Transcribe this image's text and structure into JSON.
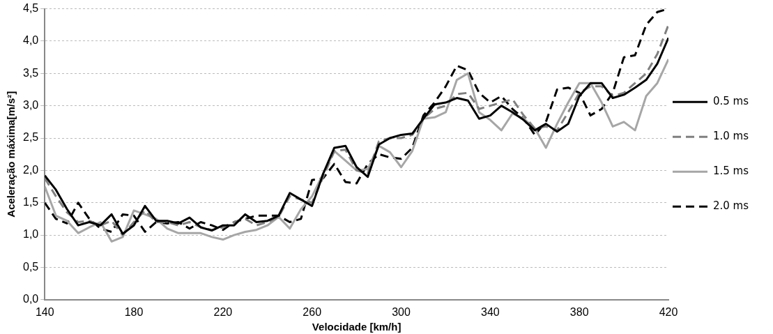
{
  "chart_data": {
    "type": "line",
    "xlabel": "Velocidade [km/h]",
    "ylabel": "Aceleração máxima[m/s²]",
    "x": [
      140,
      145,
      150,
      155,
      160,
      165,
      170,
      175,
      180,
      185,
      190,
      195,
      200,
      205,
      210,
      215,
      220,
      225,
      230,
      235,
      240,
      245,
      250,
      255,
      260,
      265,
      270,
      275,
      280,
      285,
      290,
      295,
      300,
      305,
      310,
      315,
      320,
      325,
      330,
      335,
      340,
      345,
      350,
      355,
      360,
      365,
      370,
      375,
      380,
      385,
      390,
      395,
      400,
      405,
      410,
      415,
      420
    ],
    "xlim": [
      140,
      420
    ],
    "xticks": [
      140,
      180,
      220,
      260,
      300,
      340,
      380,
      420
    ],
    "ylim": [
      0,
      4.5
    ],
    "yticks": [
      {
        "value": 0,
        "label": "0,0"
      },
      {
        "value": 0.5,
        "label": "0,5"
      },
      {
        "value": 1,
        "label": "1,0"
      },
      {
        "value": 1.5,
        "label": "1,5"
      },
      {
        "value": 2,
        "label": "2,0"
      },
      {
        "value": 2.5,
        "label": "2,5"
      },
      {
        "value": 3,
        "label": "3,0"
      },
      {
        "value": 3.5,
        "label": "3,5"
      },
      {
        "value": 4,
        "label": "4,0"
      },
      {
        "value": 4.5,
        "label": "4,5"
      }
    ],
    "grid": "y",
    "legend": "right",
    "marker": "none",
    "series": [
      {
        "name": "0.5 ms",
        "color": "#000000",
        "line_style": "solid",
        "values": [
          1.92,
          1.7,
          1.4,
          1.15,
          1.2,
          1.15,
          1.32,
          1.02,
          1.15,
          1.45,
          1.22,
          1.22,
          1.18,
          1.27,
          1.12,
          1.07,
          1.15,
          1.15,
          1.32,
          1.2,
          1.22,
          1.3,
          1.65,
          1.55,
          1.45,
          1.95,
          2.35,
          2.38,
          2.05,
          1.9,
          2.4,
          2.5,
          2.55,
          2.57,
          2.8,
          3.02,
          3.05,
          3.12,
          3.08,
          2.8,
          2.85,
          3.0,
          2.9,
          2.78,
          2.62,
          2.72,
          2.6,
          2.72,
          3.15,
          3.35,
          3.35,
          3.12,
          3.17,
          3.28,
          3.4,
          3.65,
          4.05
        ]
      },
      {
        "name": "1.0 ms",
        "color": "#808080",
        "line_style": "dashed",
        "values": [
          1.88,
          1.6,
          1.35,
          1.2,
          1.22,
          1.15,
          1.22,
          1.0,
          1.2,
          1.38,
          1.2,
          1.2,
          1.15,
          1.2,
          1.12,
          1.08,
          1.12,
          1.2,
          1.25,
          1.15,
          1.2,
          1.28,
          1.6,
          1.55,
          1.5,
          1.9,
          2.3,
          2.32,
          2.0,
          1.95,
          2.45,
          2.5,
          2.5,
          2.55,
          2.8,
          2.95,
          3.0,
          3.18,
          3.2,
          2.95,
          3.0,
          3.05,
          3.1,
          2.85,
          2.65,
          2.68,
          2.62,
          2.9,
          3.2,
          3.3,
          3.3,
          3.15,
          3.2,
          3.35,
          3.5,
          3.8,
          4.25
        ]
      },
      {
        "name": "1.5 ms",
        "color": "#a6a6a6",
        "line_style": "solid",
        "values": [
          1.75,
          1.3,
          1.22,
          1.03,
          1.12,
          1.2,
          0.9,
          0.97,
          1.38,
          1.32,
          1.25,
          1.1,
          1.03,
          1.03,
          1.03,
          0.97,
          0.93,
          1.0,
          1.05,
          1.08,
          1.15,
          1.28,
          1.1,
          1.4,
          1.6,
          1.95,
          2.3,
          2.15,
          2.0,
          2.02,
          2.38,
          2.28,
          2.05,
          2.3,
          2.8,
          2.82,
          2.9,
          3.4,
          3.5,
          2.9,
          2.78,
          2.62,
          2.88,
          2.8,
          2.65,
          2.35,
          2.72,
          3.05,
          3.35,
          3.35,
          3.05,
          2.68,
          2.75,
          2.62,
          3.15,
          3.35,
          3.72
        ]
      },
      {
        "name": "2.0 ms",
        "color": "#000000",
        "line_style": "dashed",
        "values": [
          1.5,
          1.25,
          1.18,
          1.5,
          1.25,
          1.1,
          1.05,
          1.32,
          1.3,
          1.05,
          1.2,
          1.18,
          1.2,
          1.1,
          1.2,
          1.15,
          1.08,
          1.2,
          1.25,
          1.3,
          1.3,
          1.3,
          1.2,
          1.25,
          1.85,
          1.88,
          2.1,
          1.82,
          1.8,
          2.1,
          2.25,
          2.2,
          2.18,
          2.35,
          2.85,
          3.05,
          3.3,
          3.62,
          3.55,
          3.2,
          3.05,
          3.15,
          2.95,
          2.8,
          2.55,
          2.75,
          3.25,
          3.28,
          3.2,
          2.85,
          2.95,
          3.2,
          3.75,
          3.78,
          4.25,
          4.45,
          4.5
        ]
      }
    ]
  }
}
